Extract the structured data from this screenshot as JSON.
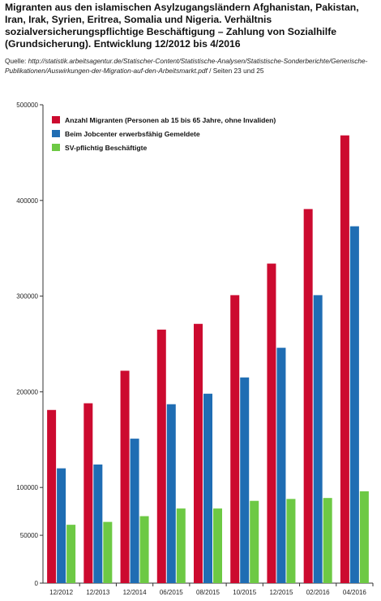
{
  "title": "Migranten aus den islamischen Asylzugangsländern Afghanistan, Pakistan, Iran, Irak, Syrien, Eritrea, Somalia und Nigeria. Verhältnis sozialversicherungspflichtige Beschäftigung – Zahlung von Sozialhilfe (Grundsicherung). Entwicklung 12/2012 bis 4/2016",
  "source": {
    "prefix": "Quelle: ",
    "url": "http://statistik.arbeitsagentur.de/Statischer-Content/Statistische-Analysen/Statistische-Sonderberichte/Generische-Publikationen/Auswirkungen-der-Migration-auf-den-Arbeitsmarkt.pdf",
    "suffix": " / Seiten 23 und 25"
  },
  "chart_data": {
    "type": "bar",
    "categories": [
      "12/2012",
      "12/2013",
      "12/2014",
      "06/2015",
      "08/2015",
      "10/2015",
      "12/2015",
      "02/2016",
      "04/2016"
    ],
    "series": [
      {
        "name": "Anzahl Migranten (Personen ab 15 bis 65 Jahre, ohne Invaliden)",
        "color": "#cc0a2f",
        "values": [
          181000,
          188000,
          222000,
          265000,
          271000,
          301000,
          334000,
          391000,
          468000
        ]
      },
      {
        "name": "Beim Jobcenter erwerbsfähig Gemeldete",
        "color": "#1f6db3",
        "values": [
          120000,
          124000,
          151000,
          187000,
          198000,
          215000,
          246000,
          301000,
          373000
        ]
      },
      {
        "name": "SV-pflichtig Beschäftigte",
        "color": "#6dc944",
        "values": [
          61000,
          64000,
          70000,
          78000,
          78000,
          86000,
          88000,
          89000,
          96000
        ]
      }
    ],
    "yticks": [
      0,
      50000,
      100000,
      200000,
      300000,
      400000,
      500000
    ],
    "ytick_labels": [
      "0",
      "50000",
      "100000",
      "200000",
      "300000",
      "400000",
      "500000"
    ],
    "ylim": [
      0,
      500000
    ],
    "xlabel": "",
    "ylabel": "",
    "grid": false,
    "legend_position": "top-left"
  }
}
